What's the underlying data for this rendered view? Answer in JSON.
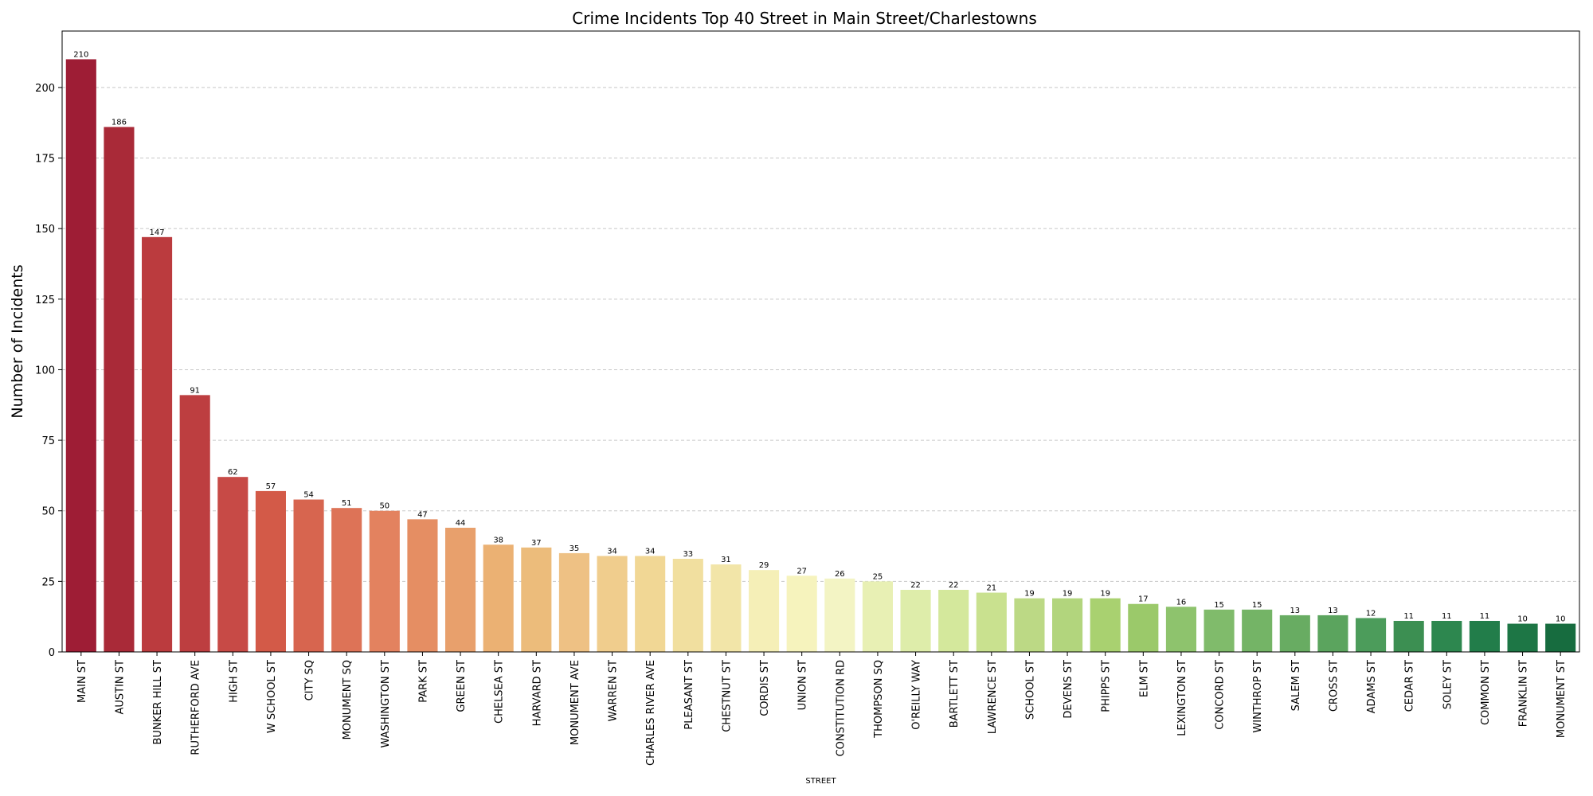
{
  "chart_data": {
    "type": "bar",
    "title": "Crime Incidents Top 40 Street in Main Street/Charlestowns",
    "xlabel": "STREET",
    "ylabel": "Number of Incidents",
    "ylim": [
      0,
      220
    ],
    "yticks": [
      0,
      25,
      50,
      75,
      100,
      125,
      150,
      175,
      200
    ],
    "grid": "horizontal dashed",
    "categories": [
      "MAIN ST",
      "AUSTIN ST",
      "BUNKER HILL ST",
      "RUTHERFORD AVE",
      "HIGH ST",
      "W SCHOOL ST",
      "CITY SQ",
      "MONUMENT SQ",
      "WASHINGTON ST",
      "PARK ST",
      "GREEN ST",
      "CHELSEA ST",
      "HARVARD ST",
      "MONUMENT AVE",
      "WARREN ST",
      "CHARLES RIVER AVE",
      "PLEASANT ST",
      "CHESTNUT ST",
      "CORDIS ST",
      "UNION ST",
      "CONSTITUTION RD",
      "THOMPSON SQ",
      "O'REILLY WAY",
      "BARTLETT ST",
      "LAWRENCE ST",
      "SCHOOL ST",
      "DEVENS ST",
      "PHIPPS ST",
      "ELM ST",
      "LEXINGTON ST",
      "CONCORD ST",
      "WINTHROP ST",
      "SALEM ST",
      "CROSS ST",
      "ADAMS ST",
      "CEDAR ST",
      "SOLEY ST",
      "COMMON ST",
      "FRANKLIN ST",
      "MONUMENT ST"
    ],
    "values": [
      210,
      186,
      147,
      91,
      62,
      57,
      54,
      51,
      50,
      47,
      44,
      38,
      37,
      35,
      34,
      34,
      33,
      31,
      29,
      27,
      26,
      25,
      22,
      22,
      21,
      19,
      19,
      19,
      17,
      16,
      15,
      15,
      13,
      13,
      12,
      11,
      11,
      11,
      10,
      10
    ],
    "colors": [
      "#9e1d35",
      "#a92a38",
      "#bb3b3e",
      "#bd3e40",
      "#c74a46",
      "#d35a48",
      "#d7654f",
      "#dd7357",
      "#e3825f",
      "#e58e63",
      "#e8a06c",
      "#ebb173",
      "#ecbc7b",
      "#eec184",
      "#f0cd8d",
      "#f1d795",
      "#f1df9f",
      "#f2e5a8",
      "#f5efb7",
      "#f6f3bd",
      "#f3f4c4",
      "#e8f0b4",
      "#deedaa",
      "#d4e89c",
      "#c9e18f",
      "#bcd985",
      "#b2d57d",
      "#a9d170",
      "#9bc96a",
      "#8ec36d",
      "#80bb6b",
      "#74b466",
      "#68ac62",
      "#5ba45e",
      "#4c9c5b",
      "#3c8f52",
      "#2d874f",
      "#227d4a",
      "#1d7645",
      "#176c3f"
    ]
  }
}
